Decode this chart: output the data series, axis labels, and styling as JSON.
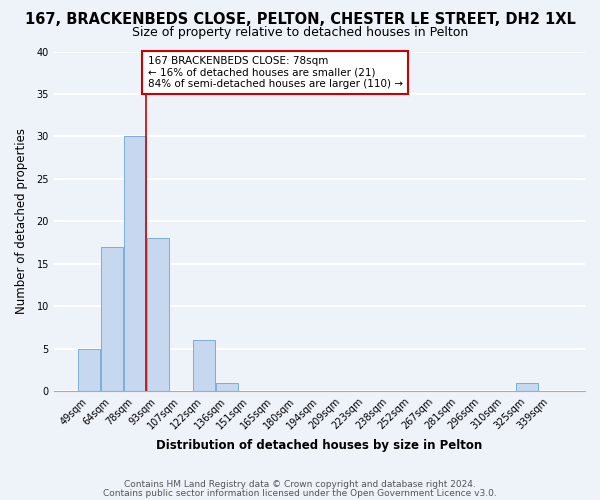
{
  "title": "167, BRACKENBEDS CLOSE, PELTON, CHESTER LE STREET, DH2 1XL",
  "subtitle": "Size of property relative to detached houses in Pelton",
  "xlabel": "Distribution of detached houses by size in Pelton",
  "ylabel": "Number of detached properties",
  "bar_labels": [
    "49sqm",
    "64sqm",
    "78sqm",
    "93sqm",
    "107sqm",
    "122sqm",
    "136sqm",
    "151sqm",
    "165sqm",
    "180sqm",
    "194sqm",
    "209sqm",
    "223sqm",
    "238sqm",
    "252sqm",
    "267sqm",
    "281sqm",
    "296sqm",
    "310sqm",
    "325sqm",
    "339sqm"
  ],
  "bar_values": [
    5,
    17,
    30,
    18,
    0,
    6,
    1,
    0,
    0,
    0,
    0,
    0,
    0,
    0,
    0,
    0,
    0,
    0,
    0,
    1,
    0
  ],
  "bar_color": "#c5d8ef",
  "bar_edge_color": "#7bafd4",
  "vline_x": 2,
  "vline_color": "#cc0000",
  "annotation_text": "167 BRACKENBEDS CLOSE: 78sqm\n← 16% of detached houses are smaller (21)\n84% of semi-detached houses are larger (110) →",
  "annotation_box_edgecolor": "#cc0000",
  "annotation_box_facecolor": "#ffffff",
  "ylim": [
    0,
    40
  ],
  "yticks": [
    0,
    5,
    10,
    15,
    20,
    25,
    30,
    35,
    40
  ],
  "footer_line1": "Contains HM Land Registry data © Crown copyright and database right 2024.",
  "footer_line2": "Contains public sector information licensed under the Open Government Licence v3.0.",
  "bg_color": "#eef2f9",
  "plot_bg_color": "#eef2f9",
  "grid_color": "#ffffff",
  "title_fontsize": 10.5,
  "subtitle_fontsize": 9,
  "tick_fontsize": 7,
  "label_fontsize": 8.5,
  "footer_fontsize": 6.5
}
